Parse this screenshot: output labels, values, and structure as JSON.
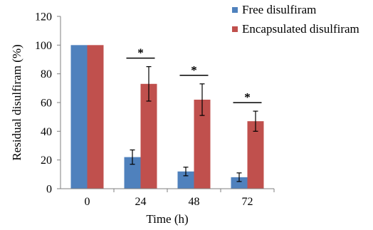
{
  "chart_data": {
    "type": "bar",
    "title": "",
    "xlabel": "Time (h)",
    "ylabel": "Residual disulfiram (%)",
    "ylim": [
      0,
      120
    ],
    "yticks": [
      0,
      20,
      40,
      60,
      80,
      100,
      120
    ],
    "categories": [
      "0",
      "24",
      "48",
      "72"
    ],
    "series": [
      {
        "name": "Free disulfiram",
        "color": "#4F81BD",
        "values": [
          100,
          22,
          12,
          8
        ],
        "errors": [
          0,
          5,
          3,
          3
        ]
      },
      {
        "name": "Encapsulated disulfiram",
        "color": "#C0504D",
        "values": [
          100,
          73,
          62,
          47
        ],
        "errors": [
          0,
          12,
          11,
          7
        ]
      }
    ],
    "annotations": [
      {
        "category": "24",
        "text": "*"
      },
      {
        "category": "48",
        "text": "*"
      },
      {
        "category": "72",
        "text": "*"
      }
    ],
    "legend_position": "top-right",
    "grid": false
  }
}
